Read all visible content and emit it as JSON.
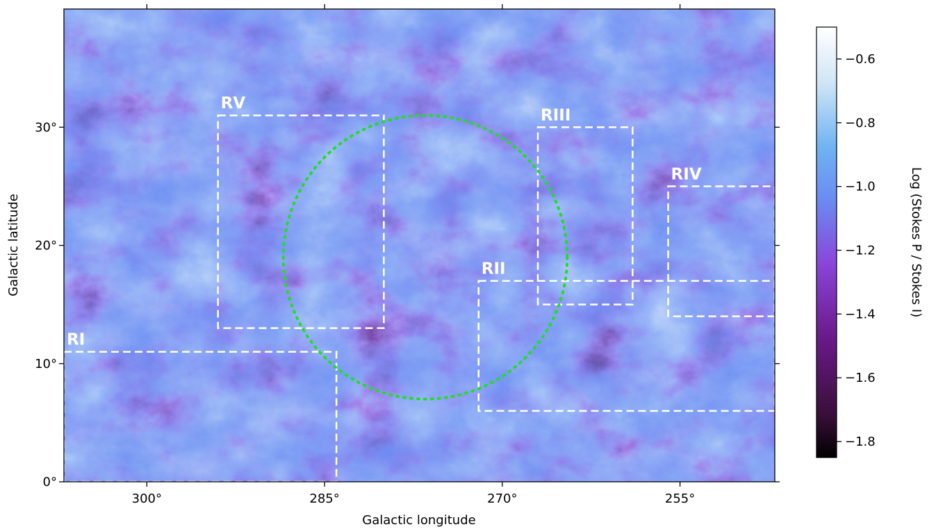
{
  "map": {
    "xlabel": "Galactic longitude",
    "ylabel": "Galactic latitude",
    "x_ticks": [
      {
        "value": 300,
        "label": "300°"
      },
      {
        "value": 285,
        "label": "285°"
      },
      {
        "value": 270,
        "label": "270°"
      },
      {
        "value": 255,
        "label": "255°"
      }
    ],
    "y_ticks": [
      {
        "value": 0,
        "label": "0°"
      },
      {
        "value": 10,
        "label": "10°"
      },
      {
        "value": 20,
        "label": "20°"
      },
      {
        "value": 30,
        "label": "30°"
      }
    ],
    "lon_range": [
      307,
      247
    ],
    "lat_range": [
      0,
      40
    ],
    "regions": [
      {
        "label": "RI",
        "lon": [
          307,
          284
        ],
        "lat": [
          0,
          11
        ]
      },
      {
        "label": "RII",
        "lon": [
          272,
          247
        ],
        "lat": [
          6,
          17
        ]
      },
      {
        "label": "RIII",
        "lon": [
          267,
          259
        ],
        "lat": [
          15,
          30
        ]
      },
      {
        "label": "RIV",
        "lon": [
          256,
          247
        ],
        "lat": [
          14,
          25
        ]
      },
      {
        "label": "RV",
        "lon": [
          294,
          280
        ],
        "lat": [
          13,
          31
        ]
      }
    ],
    "circle": {
      "center_lon": 276.5,
      "center_lat": 19,
      "radius_deg": 12,
      "color": "#22dd22"
    },
    "box_color": "#ffffff"
  },
  "colorbar": {
    "label": "Log (Stokes P / Stokes I)",
    "range": [
      -1.85,
      -0.5
    ],
    "ticks": [
      {
        "value": -0.6,
        "label": "−0.6"
      },
      {
        "value": -0.8,
        "label": "−0.8"
      },
      {
        "value": -1.0,
        "label": "−1.0"
      },
      {
        "value": -1.2,
        "label": "−1.2"
      },
      {
        "value": -1.4,
        "label": "−1.4"
      },
      {
        "value": -1.6,
        "label": "−1.6"
      },
      {
        "value": -1.8,
        "label": "−1.8"
      }
    ],
    "colors": [
      "#000000",
      "#3a0f3a",
      "#6a1a8a",
      "#8a45d8",
      "#6a8cf2",
      "#6fb3f2",
      "#cfe5f5",
      "#ffffff"
    ]
  }
}
